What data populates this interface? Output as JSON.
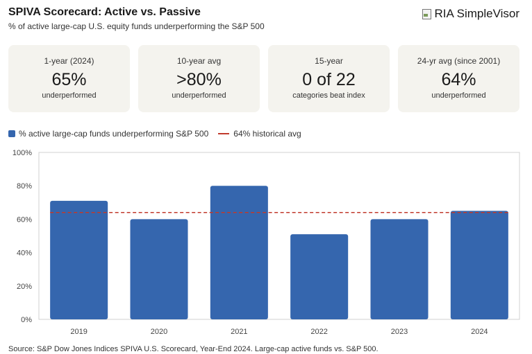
{
  "header": {
    "title": "SPIVA Scorecard: Active vs. Passive",
    "subtitle": "% of active large-cap U.S. equity funds underperforming the S&P 500",
    "brand": "RIA SimpleVisor",
    "brand_icon": "broken-image-icon"
  },
  "cards": [
    {
      "label": "1-year (2024)",
      "value": "65%",
      "sub": "underperformed"
    },
    {
      "label": "10-year avg",
      "value": ">80%",
      "sub": "underperformed"
    },
    {
      "label": "15-year",
      "value": "0 of 22",
      "sub": "categories beat index"
    },
    {
      "label": "24-yr avg (since 2001)",
      "value": "64%",
      "sub": "underperformed"
    }
  ],
  "legend": {
    "bars": "% active large-cap funds underperforming S&P 500",
    "line": "64% historical avg"
  },
  "colors": {
    "bar": "#3566ae",
    "avg_line": "#c0392b",
    "card_bg": "#f4f3ee"
  },
  "chart_data": {
    "type": "bar",
    "categories": [
      "2019",
      "2020",
      "2021",
      "2022",
      "2023",
      "2024"
    ],
    "series": [
      {
        "name": "% active large-cap funds underperforming S&P 500",
        "values": [
          71,
          60,
          80,
          51,
          60,
          65
        ]
      }
    ],
    "reference_line": {
      "name": "64% historical avg",
      "value": 64
    },
    "yticks": [
      "0%",
      "20%",
      "40%",
      "60%",
      "80%",
      "100%"
    ],
    "ylim": [
      0,
      100
    ],
    "grid": false,
    "legend_position": "top-left"
  },
  "footer": {
    "source": "Source: S&P Dow Jones Indices SPIVA U.S. Scorecard, Year-End 2024. Large-cap active funds vs. S&P 500."
  }
}
